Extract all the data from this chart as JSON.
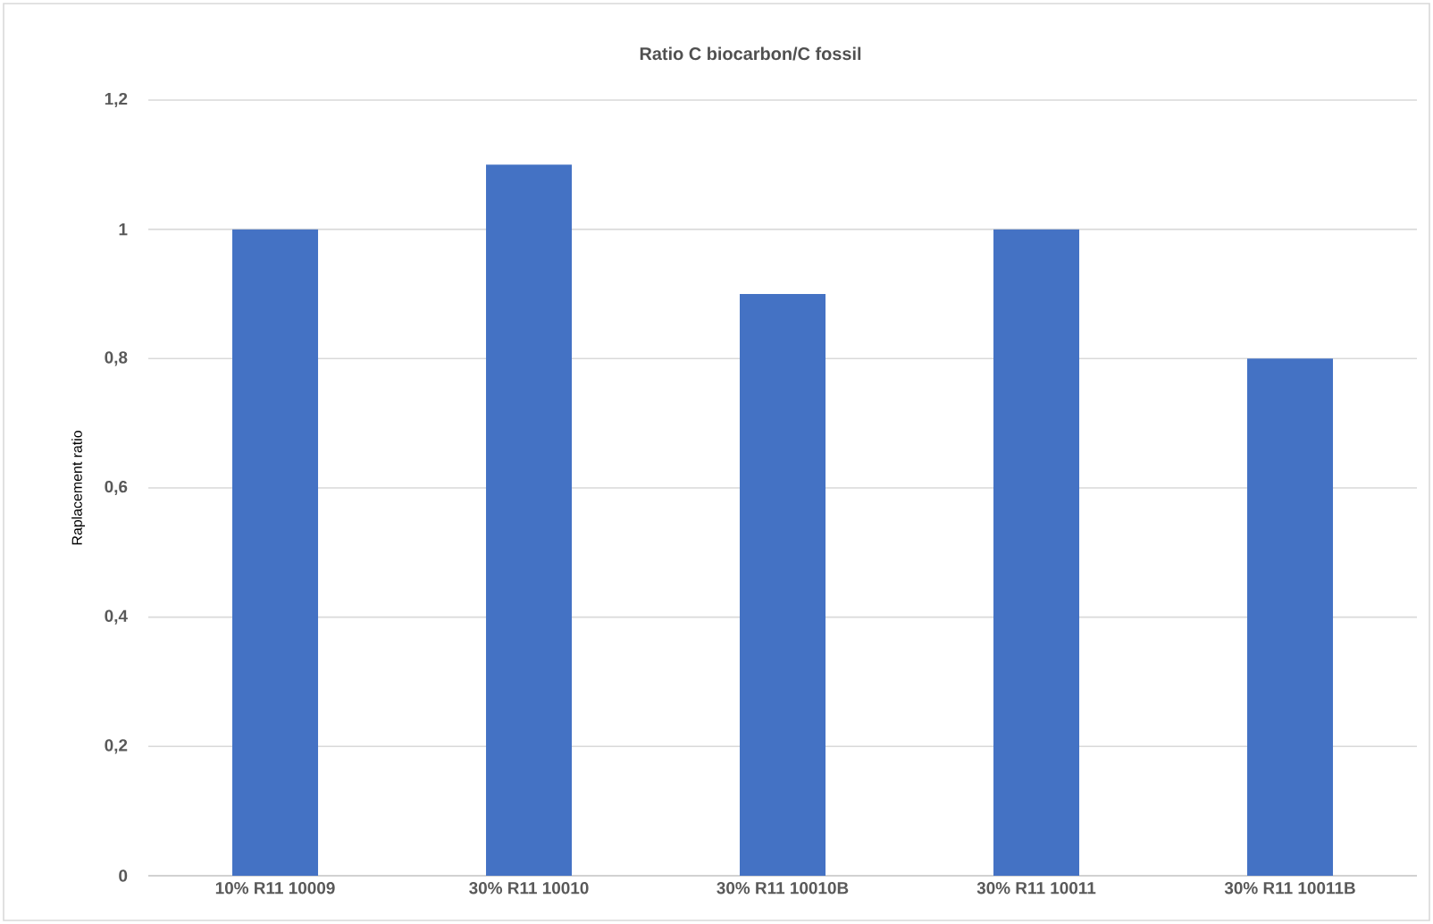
{
  "chart_data": {
    "type": "bar",
    "title": "Ratio C biocarbon/C fossil",
    "ylabel": "Raplacement ratio",
    "categories": [
      "10%  R11 10009",
      "30%  R11 10010",
      "30%  R11 10010B",
      "30%  R11 10011",
      "30%  R11 10011B"
    ],
    "values": [
      1,
      1.1,
      0.9,
      1,
      0.8
    ],
    "color": "#4472c4",
    "ylim": [
      0,
      1.2
    ],
    "yticks": [
      {
        "value": 0,
        "label": "0"
      },
      {
        "value": 0.2,
        "label": "0,2"
      },
      {
        "value": 0.4,
        "label": "0,4"
      },
      {
        "value": 0.6,
        "label": "0,6"
      },
      {
        "value": 0.8,
        "label": "0,8"
      },
      {
        "value": 1,
        "label": "1"
      },
      {
        "value": 1.2,
        "label": "1,2"
      }
    ],
    "grid": "y"
  }
}
